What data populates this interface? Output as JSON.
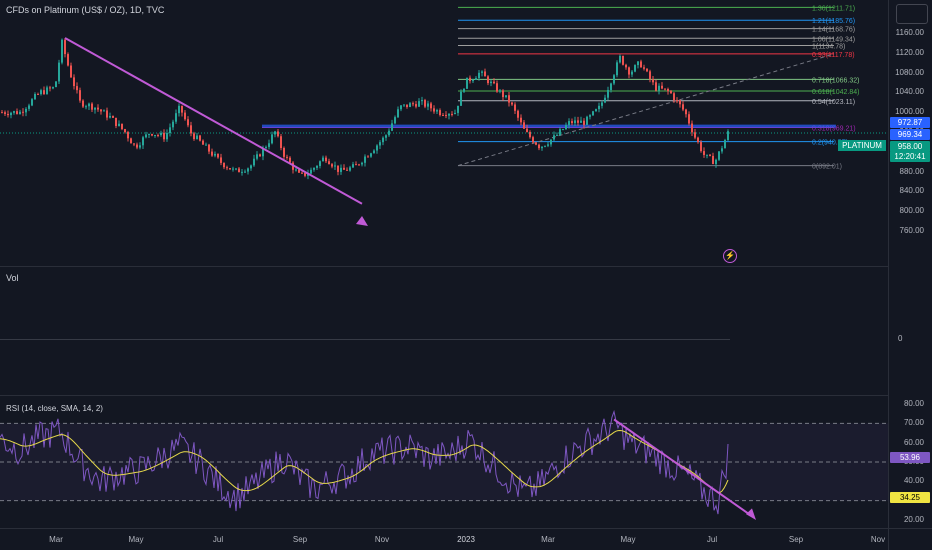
{
  "header": {
    "symbol_title": "CFDs on Platinum (US$ / OZ), 1D, TVC"
  },
  "price_axis": {
    "ticks": [
      "1160.00",
      "1120.00",
      "1080.00",
      "1040.00",
      "1000.00",
      "960.00",
      "920.00",
      "880.00",
      "840.00",
      "800.00",
      "760.00"
    ],
    "tags": {
      "high": "972.87",
      "fib_tag": "969.34",
      "last": "958.00",
      "countdown": "12:20:41",
      "symbol_label": "PLATINUM"
    }
  },
  "fib_levels": [
    {
      "label": "1.36(1211.71)",
      "value": 1211.71,
      "color": "#4caf50"
    },
    {
      "label": "1.21(1185.76)",
      "value": 1185.76,
      "color": "#2196f3"
    },
    {
      "label": "1.14(1168.76)",
      "value": 1168.76,
      "color": "#9e9e9e"
    },
    {
      "label": "1.06(1149.34)",
      "value": 1149.34,
      "color": "#9e9e9e"
    },
    {
      "label": "1(1134.78)",
      "value": 1134.78,
      "color": "#9e9e9e"
    },
    {
      "label": "0.93(1117.78)",
      "value": 1117.78,
      "color": "#f23645"
    },
    {
      "label": "0.718(1066.32)",
      "value": 1066.32,
      "color": "#81c784"
    },
    {
      "label": "0.618(1042.84)",
      "value": 1042.84,
      "color": "#4caf50"
    },
    {
      "label": "0.54(1023.11)",
      "value": 1023.11,
      "color": "#b2b5be"
    },
    {
      "label": "0.318(969.21)",
      "value": 969.21,
      "color": "#9c27b0"
    },
    {
      "label": "0.2(940.57)",
      "value": 940.57,
      "color": "#2196f3"
    },
    {
      "label": "0(892.01)",
      "value": 892.01,
      "color": "#787b86"
    }
  ],
  "volume_pane": {
    "label": "Vol",
    "zero_tick": "0"
  },
  "rsi_pane": {
    "label": "RSI (14, close, SMA, 14, 2)",
    "ticks": [
      "80.00",
      "70.00",
      "60.00",
      "50.00",
      "40.00",
      "30.00",
      "20.00"
    ],
    "rsi_value": "53.96",
    "sma_value": "34.25"
  },
  "time_axis": {
    "ticks": [
      "Mar",
      "May",
      "Jul",
      "Sep",
      "Nov",
      "2023",
      "Mar",
      "May",
      "Jul",
      "Sep",
      "Nov"
    ]
  },
  "colors": {
    "up": "#26a69a",
    "down": "#ef5350",
    "trendline": "#c05ad6",
    "rsi_line": "#7e57c2",
    "rsi_sma": "#e6d94a",
    "tag_blue": "#2962ff",
    "tag_green": "#089981"
  },
  "icons": {
    "lightning": "lightning-icon",
    "top_right_box": "chart-settings-box"
  }
}
